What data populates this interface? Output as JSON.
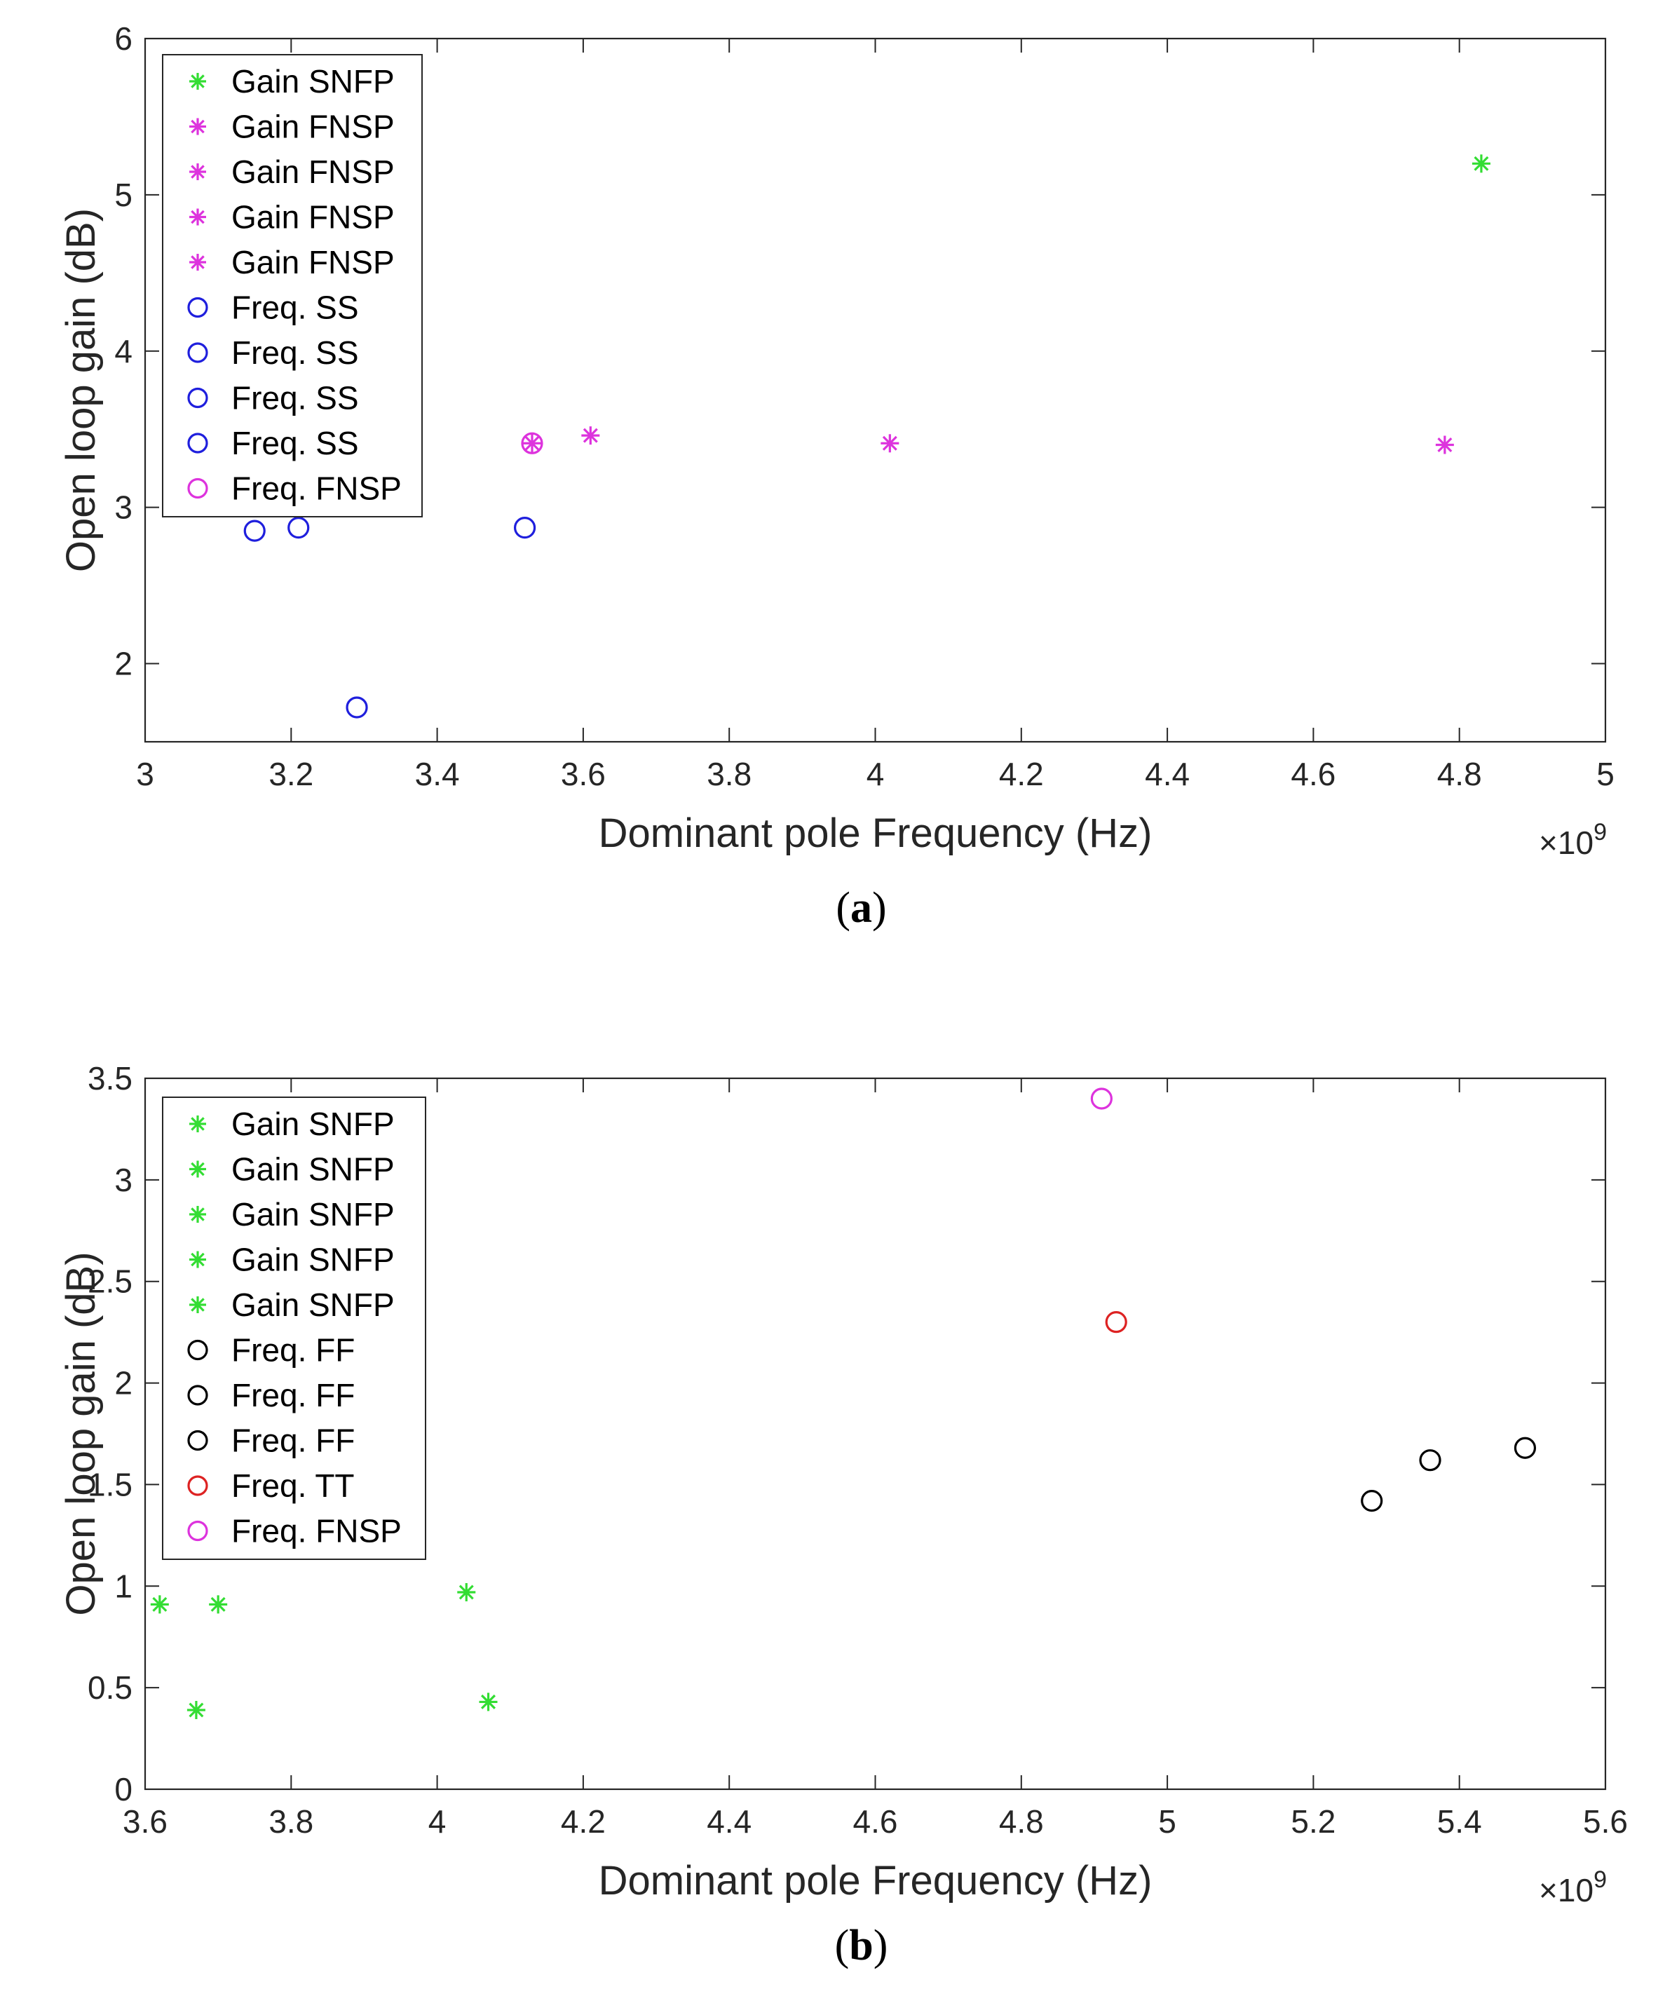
{
  "chart_data": [
    {
      "type": "scatter",
      "caption": "(a)",
      "caption_letter": "a",
      "xlabel": "Dominant pole Frequency (Hz)",
      "ylabel": "Open loop gain (dB)",
      "xlim": [
        3.0,
        5.0
      ],
      "ylim": [
        1.5,
        6.0
      ],
      "x_multiplier": "×10",
      "x_exponent": "9",
      "xticks": [
        3.0,
        3.2,
        3.4,
        3.6,
        3.8,
        4.0,
        4.2,
        4.4,
        4.6,
        4.8,
        5.0
      ],
      "xtick_labels": [
        "3",
        "3.2",
        "3.4",
        "3.6",
        "3.8",
        "4",
        "4.2",
        "4.4",
        "4.6",
        "4.8",
        "5"
      ],
      "yticks": [
        2,
        3,
        4,
        5,
        6
      ],
      "ytick_labels": [
        "2",
        "3",
        "4",
        "5",
        "6"
      ],
      "legend_position": "top-left",
      "series": [
        {
          "name": "Gain SNFP",
          "marker": "asterisk",
          "color": "#33dd33",
          "points": [
            [
              4.83,
              5.2
            ]
          ]
        },
        {
          "name": "Gain FNSP",
          "marker": "asterisk",
          "color": "#dd33dd",
          "points": [
            [
              3.53,
              3.41
            ]
          ]
        },
        {
          "name": "Gain FNSP",
          "marker": "asterisk",
          "color": "#dd33dd",
          "points": [
            [
              3.61,
              3.46
            ]
          ]
        },
        {
          "name": "Gain FNSP",
          "marker": "asterisk",
          "color": "#dd33dd",
          "points": [
            [
              4.02,
              3.41
            ]
          ]
        },
        {
          "name": "Gain FNSP",
          "marker": "asterisk",
          "color": "#dd33dd",
          "points": [
            [
              4.78,
              3.4
            ]
          ]
        },
        {
          "name": "Freq. SS",
          "marker": "circle",
          "color": "#1f1fdd",
          "points": [
            [
              3.15,
              2.85
            ]
          ]
        },
        {
          "name": "Freq. SS",
          "marker": "circle",
          "color": "#1f1fdd",
          "points": [
            [
              3.21,
              2.87
            ]
          ]
        },
        {
          "name": "Freq. SS",
          "marker": "circle",
          "color": "#1f1fdd",
          "points": [
            [
              3.52,
              2.87
            ]
          ]
        },
        {
          "name": "Freq. SS",
          "marker": "circle",
          "color": "#1f1fdd",
          "points": [
            [
              3.29,
              1.72
            ]
          ]
        },
        {
          "name": "Freq. FNSP",
          "marker": "circle",
          "color": "#dd33dd",
          "points": [
            [
              3.53,
              3.41
            ]
          ]
        }
      ]
    },
    {
      "type": "scatter",
      "caption": "(b)",
      "caption_letter": "b",
      "xlabel": "Dominant pole Frequency (Hz)",
      "ylabel": "Open loop gain (dB)",
      "xlim": [
        3.6,
        5.6
      ],
      "ylim": [
        0.0,
        3.5
      ],
      "x_multiplier": "×10",
      "x_exponent": "9",
      "xticks": [
        3.6,
        3.8,
        4.0,
        4.2,
        4.4,
        4.6,
        4.8,
        5.0,
        5.2,
        5.4,
        5.6
      ],
      "xtick_labels": [
        "3.6",
        "3.8",
        "4",
        "4.2",
        "4.4",
        "4.6",
        "4.8",
        "5",
        "5.2",
        "5.4",
        "5.6"
      ],
      "yticks": [
        0,
        0.5,
        1,
        1.5,
        2,
        2.5,
        3,
        3.5
      ],
      "ytick_labels": [
        "0",
        "0.5",
        "1",
        "1.5",
        "2",
        "2.5",
        "3",
        "3.5"
      ],
      "legend_position": "top-left",
      "series": [
        {
          "name": "Gain SNFP",
          "marker": "asterisk",
          "color": "#33dd33",
          "points": [
            [
              3.62,
              0.91
            ]
          ]
        },
        {
          "name": "Gain SNFP",
          "marker": "asterisk",
          "color": "#33dd33",
          "points": [
            [
              3.7,
              0.91
            ]
          ]
        },
        {
          "name": "Gain SNFP",
          "marker": "asterisk",
          "color": "#33dd33",
          "points": [
            [
              3.67,
              0.39
            ]
          ]
        },
        {
          "name": "Gain SNFP",
          "marker": "asterisk",
          "color": "#33dd33",
          "points": [
            [
              4.04,
              0.97
            ]
          ]
        },
        {
          "name": "Gain SNFP",
          "marker": "asterisk",
          "color": "#33dd33",
          "points": [
            [
              4.07,
              0.43
            ]
          ]
        },
        {
          "name": "Freq. FF",
          "marker": "circle",
          "color": "#000000",
          "points": [
            [
              5.28,
              1.42
            ]
          ]
        },
        {
          "name": "Freq. FF",
          "marker": "circle",
          "color": "#000000",
          "points": [
            [
              5.36,
              1.62
            ]
          ]
        },
        {
          "name": "Freq. FF",
          "marker": "circle",
          "color": "#000000",
          "points": [
            [
              5.49,
              1.68
            ]
          ]
        },
        {
          "name": "Freq. TT",
          "marker": "circle",
          "color": "#dd2222",
          "points": [
            [
              4.93,
              2.3
            ]
          ]
        },
        {
          "name": "Freq. FNSP",
          "marker": "circle",
          "color": "#dd33dd",
          "points": [
            [
              4.91,
              3.4
            ]
          ]
        }
      ]
    }
  ]
}
